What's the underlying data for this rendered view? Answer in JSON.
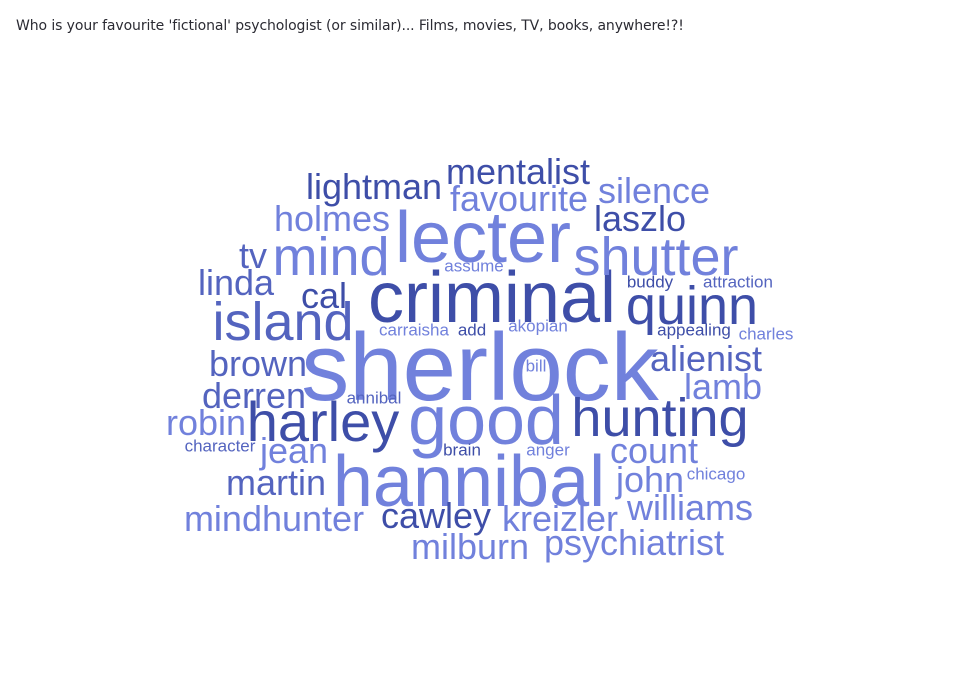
{
  "question": "Who is your favourite 'fictional' psychologist (or similar)... Films, movies, TV, books, anywhere!?!",
  "palette": {
    "dark": "#3e4ea8",
    "medium": "#5464bf",
    "light": "#7181dc"
  },
  "words": [
    {
      "text": "sherlock",
      "weight": 96,
      "tone": "light"
    },
    {
      "text": "criminal",
      "weight": 72,
      "tone": "dark"
    },
    {
      "text": "lecter",
      "weight": 72,
      "tone": "light"
    },
    {
      "text": "hannibal",
      "weight": 72,
      "tone": "light"
    },
    {
      "text": "good",
      "weight": 70,
      "tone": "light"
    },
    {
      "text": "island",
      "weight": 54,
      "tone": "medium"
    },
    {
      "text": "shutter",
      "weight": 54,
      "tone": "light"
    },
    {
      "text": "mind",
      "weight": 54,
      "tone": "light"
    },
    {
      "text": "quinn",
      "weight": 54,
      "tone": "dark"
    },
    {
      "text": "harley",
      "weight": 56,
      "tone": "dark"
    },
    {
      "text": "hunting",
      "weight": 54,
      "tone": "dark"
    },
    {
      "text": "mentalist",
      "weight": 36,
      "tone": "dark"
    },
    {
      "text": "lightman",
      "weight": 36,
      "tone": "dark"
    },
    {
      "text": "favourite",
      "weight": 36,
      "tone": "light"
    },
    {
      "text": "silence",
      "weight": 36,
      "tone": "light"
    },
    {
      "text": "holmes",
      "weight": 36,
      "tone": "light"
    },
    {
      "text": "laszlo",
      "weight": 36,
      "tone": "dark"
    },
    {
      "text": "tv",
      "weight": 36,
      "tone": "medium"
    },
    {
      "text": "linda",
      "weight": 36,
      "tone": "medium"
    },
    {
      "text": "cal",
      "weight": 36,
      "tone": "dark"
    },
    {
      "text": "alienist",
      "weight": 36,
      "tone": "medium"
    },
    {
      "text": "brown",
      "weight": 36,
      "tone": "medium"
    },
    {
      "text": "lamb",
      "weight": 36,
      "tone": "light"
    },
    {
      "text": "derren",
      "weight": 36,
      "tone": "medium"
    },
    {
      "text": "robin",
      "weight": 36,
      "tone": "light"
    },
    {
      "text": "jean",
      "weight": 36,
      "tone": "light"
    },
    {
      "text": "count",
      "weight": 36,
      "tone": "light"
    },
    {
      "text": "john",
      "weight": 36,
      "tone": "light"
    },
    {
      "text": "martin",
      "weight": 36,
      "tone": "medium"
    },
    {
      "text": "williams",
      "weight": 36,
      "tone": "light"
    },
    {
      "text": "mindhunter",
      "weight": 36,
      "tone": "light"
    },
    {
      "text": "cawley",
      "weight": 36,
      "tone": "dark"
    },
    {
      "text": "kreizler",
      "weight": 36,
      "tone": "light"
    },
    {
      "text": "milburn",
      "weight": 36,
      "tone": "light"
    },
    {
      "text": "psychiatrist",
      "weight": 36,
      "tone": "light"
    },
    {
      "text": "assume",
      "weight": 17,
      "tone": "light"
    },
    {
      "text": "buddy",
      "weight": 17,
      "tone": "dark"
    },
    {
      "text": "attraction",
      "weight": 17,
      "tone": "medium"
    },
    {
      "text": "carraisha",
      "weight": 17,
      "tone": "light"
    },
    {
      "text": "add",
      "weight": 17,
      "tone": "dark"
    },
    {
      "text": "akopian",
      "weight": 17,
      "tone": "light"
    },
    {
      "text": "appealing",
      "weight": 17,
      "tone": "dark"
    },
    {
      "text": "charles",
      "weight": 17,
      "tone": "light"
    },
    {
      "text": "bill",
      "weight": 17,
      "tone": "light"
    },
    {
      "text": "annibal",
      "weight": 17,
      "tone": "medium"
    },
    {
      "text": "character",
      "weight": 17,
      "tone": "medium"
    },
    {
      "text": "brain",
      "weight": 17,
      "tone": "dark"
    },
    {
      "text": "anger",
      "weight": 17,
      "tone": "light"
    },
    {
      "text": "chicago",
      "weight": 17,
      "tone": "light"
    }
  ]
}
